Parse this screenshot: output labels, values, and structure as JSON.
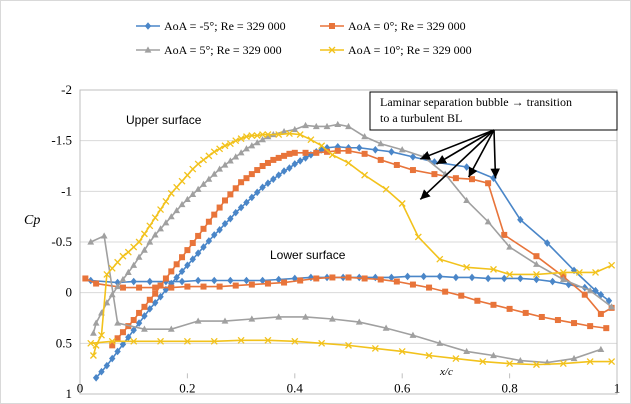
{
  "chart_data": {
    "type": "line",
    "xlabel": "x/c",
    "ylabel": "Cp",
    "xlim": [
      0,
      1
    ],
    "ylim": [
      -2,
      1
    ],
    "y_reversed": true,
    "x_ticks": [
      "0",
      "0.2",
      "0.4",
      "0.6",
      "0.8",
      "1"
    ],
    "y_ticks": [
      "-2",
      "-1.5",
      "-1",
      "-0.5",
      "0",
      "0.5",
      "1"
    ],
    "grid": "horizontal",
    "legend_position": "top",
    "series": [
      {
        "name": "AoA = -5°; Re = 329 000",
        "color": "#4a86c8",
        "marker": "diamond",
        "upper": {
          "x": [
            0.03,
            0.04,
            0.05,
            0.06,
            0.07,
            0.08,
            0.09,
            0.1,
            0.11,
            0.12,
            0.13,
            0.14,
            0.15,
            0.16,
            0.17,
            0.18,
            0.19,
            0.2,
            0.21,
            0.22,
            0.23,
            0.24,
            0.25,
            0.26,
            0.27,
            0.28,
            0.29,
            0.3,
            0.31,
            0.32,
            0.33,
            0.34,
            0.35,
            0.36,
            0.37,
            0.38,
            0.39,
            0.4,
            0.41,
            0.42,
            0.43,
            0.44,
            0.45,
            0.46,
            0.48,
            0.5,
            0.52,
            0.55,
            0.58,
            0.62,
            0.66,
            0.72,
            0.77,
            0.82,
            0.87,
            0.92,
            0.96,
            0.985
          ],
          "y": [
            0.84,
            0.78,
            0.72,
            0.65,
            0.58,
            0.51,
            0.44,
            0.37,
            0.3,
            0.23,
            0.16,
            0.1,
            0.04,
            -0.03,
            -0.09,
            -0.15,
            -0.21,
            -0.27,
            -0.33,
            -0.39,
            -0.45,
            -0.51,
            -0.57,
            -0.62,
            -0.68,
            -0.73,
            -0.79,
            -0.84,
            -0.89,
            -0.94,
            -0.99,
            -1.04,
            -1.08,
            -1.12,
            -1.16,
            -1.2,
            -1.23,
            -1.27,
            -1.3,
            -1.33,
            -1.36,
            -1.39,
            -1.41,
            -1.43,
            -1.44,
            -1.43,
            -1.43,
            -1.41,
            -1.39,
            -1.34,
            -1.29,
            -1.24,
            -1.13,
            -0.72,
            -0.49,
            -0.22,
            -0.02,
            0.08
          ]
        },
        "lower": {
          "x": [
            0.02,
            0.07,
            0.1,
            0.13,
            0.16,
            0.19,
            0.22,
            0.25,
            0.28,
            0.31,
            0.34,
            0.37,
            0.4,
            0.43,
            0.46,
            0.49,
            0.52,
            0.55,
            0.58,
            0.61,
            0.64,
            0.67,
            0.7,
            0.73,
            0.76,
            0.79,
            0.82,
            0.85,
            0.88,
            0.91,
            0.94,
            0.97
          ],
          "y": [
            -0.12,
            -0.1,
            -0.11,
            -0.11,
            -0.11,
            -0.11,
            -0.12,
            -0.12,
            -0.12,
            -0.12,
            -0.12,
            -0.13,
            -0.14,
            -0.15,
            -0.15,
            -0.15,
            -0.15,
            -0.15,
            -0.15,
            -0.16,
            -0.16,
            -0.16,
            -0.15,
            -0.15,
            -0.14,
            -0.14,
            -0.14,
            -0.13,
            -0.11,
            -0.08,
            -0.05,
            0.02
          ]
        }
      },
      {
        "name": "AoA = 0°; Re = 329 000",
        "color": "#e8743a",
        "marker": "square",
        "upper": {
          "x": [
            0.06,
            0.07,
            0.08,
            0.09,
            0.1,
            0.11,
            0.12,
            0.13,
            0.14,
            0.15,
            0.16,
            0.17,
            0.18,
            0.19,
            0.2,
            0.21,
            0.22,
            0.23,
            0.24,
            0.25,
            0.26,
            0.27,
            0.28,
            0.29,
            0.3,
            0.31,
            0.32,
            0.33,
            0.34,
            0.35,
            0.36,
            0.37,
            0.38,
            0.39,
            0.4,
            0.42,
            0.44,
            0.46,
            0.48,
            0.5,
            0.53,
            0.56,
            0.59,
            0.62,
            0.66,
            0.7,
            0.73,
            0.76,
            0.79,
            0.85,
            0.9,
            0.94,
            0.97,
            0.99
          ],
          "y": [
            0.52,
            0.45,
            0.39,
            0.33,
            0.27,
            0.2,
            0.14,
            0.07,
            0.01,
            -0.07,
            -0.14,
            -0.21,
            -0.28,
            -0.35,
            -0.42,
            -0.49,
            -0.56,
            -0.63,
            -0.7,
            -0.77,
            -0.84,
            -0.91,
            -0.97,
            -1.03,
            -1.09,
            -1.13,
            -1.17,
            -1.21,
            -1.25,
            -1.28,
            -1.31,
            -1.33,
            -1.35,
            -1.37,
            -1.38,
            -1.38,
            -1.38,
            -1.39,
            -1.4,
            -1.4,
            -1.37,
            -1.31,
            -1.26,
            -1.21,
            -1.17,
            -1.13,
            -1.12,
            -1.08,
            -0.57,
            -0.36,
            -0.16,
            0.02,
            0.21,
            0.15
          ]
        },
        "lower": {
          "x": [
            0.01,
            0.03,
            0.08,
            0.11,
            0.14,
            0.17,
            0.2,
            0.23,
            0.26,
            0.29,
            0.32,
            0.35,
            0.38,
            0.41,
            0.44,
            0.47,
            0.5,
            0.53,
            0.56,
            0.59,
            0.62,
            0.65,
            0.68,
            0.71,
            0.74,
            0.77,
            0.8,
            0.83,
            0.86,
            0.89,
            0.92,
            0.95,
            0.98
          ],
          "y": [
            -0.14,
            -0.09,
            -0.05,
            -0.05,
            -0.05,
            -0.05,
            -0.06,
            -0.06,
            -0.06,
            -0.07,
            -0.08,
            -0.09,
            -0.1,
            -0.12,
            -0.14,
            -0.15,
            -0.15,
            -0.14,
            -0.13,
            -0.11,
            -0.08,
            -0.05,
            -0.01,
            0.03,
            0.08,
            0.12,
            0.16,
            0.2,
            0.24,
            0.27,
            0.3,
            0.33,
            0.35
          ]
        }
      },
      {
        "name": "AoA = 5°; Re = 329 000",
        "color": "#a0a0a0",
        "marker": "triangle",
        "upper": {
          "x": [
            0.025,
            0.03,
            0.04,
            0.05,
            0.06,
            0.07,
            0.08,
            0.09,
            0.1,
            0.11,
            0.12,
            0.13,
            0.14,
            0.15,
            0.16,
            0.17,
            0.18,
            0.19,
            0.2,
            0.21,
            0.22,
            0.23,
            0.24,
            0.25,
            0.26,
            0.27,
            0.28,
            0.29,
            0.3,
            0.31,
            0.32,
            0.33,
            0.34,
            0.35,
            0.36,
            0.38,
            0.4,
            0.42,
            0.44,
            0.46,
            0.48,
            0.5,
            0.53,
            0.56,
            0.6,
            0.64,
            0.68,
            0.72,
            0.76,
            0.8,
            0.85,
            0.9,
            0.95,
            0.99
          ],
          "y": [
            0.4,
            0.3,
            0.2,
            0.1,
            0.02,
            -0.06,
            -0.13,
            -0.2,
            -0.27,
            -0.35,
            -0.42,
            -0.5,
            -0.57,
            -0.63,
            -0.69,
            -0.75,
            -0.81,
            -0.87,
            -0.92,
            -0.97,
            -1.02,
            -1.07,
            -1.12,
            -1.17,
            -1.22,
            -1.26,
            -1.3,
            -1.34,
            -1.38,
            -1.42,
            -1.45,
            -1.48,
            -1.51,
            -1.54,
            -1.56,
            -1.59,
            -1.61,
            -1.65,
            -1.64,
            -1.64,
            -1.66,
            -1.64,
            -1.54,
            -1.47,
            -1.41,
            -1.34,
            -1.17,
            -0.91,
            -0.7,
            -0.45,
            -0.28,
            -0.13,
            -0.02,
            0.14
          ]
        },
        "lower": {
          "x": [
            0.02,
            0.045,
            0.07,
            0.12,
            0.17,
            0.22,
            0.27,
            0.32,
            0.37,
            0.42,
            0.47,
            0.52,
            0.57,
            0.62,
            0.67,
            0.72,
            0.77,
            0.82,
            0.87,
            0.92,
            0.97
          ],
          "y": [
            -0.5,
            -0.56,
            0.3,
            0.36,
            0.36,
            0.28,
            0.28,
            0.26,
            0.24,
            0.24,
            0.26,
            0.29,
            0.35,
            0.42,
            0.5,
            0.58,
            0.62,
            0.67,
            0.69,
            0.65,
            0.56
          ]
        }
      },
      {
        "name": "AoA = 10°; Re = 329 000",
        "color": "#f2c21c",
        "marker": "x",
        "upper": {
          "x": [
            0.025,
            0.03,
            0.04,
            0.05,
            0.06,
            0.07,
            0.08,
            0.09,
            0.1,
            0.11,
            0.12,
            0.13,
            0.14,
            0.15,
            0.16,
            0.17,
            0.18,
            0.19,
            0.2,
            0.21,
            0.22,
            0.23,
            0.24,
            0.25,
            0.26,
            0.27,
            0.28,
            0.29,
            0.3,
            0.31,
            0.32,
            0.33,
            0.34,
            0.35,
            0.37,
            0.39,
            0.41,
            0.43,
            0.45,
            0.47,
            0.5,
            0.53,
            0.57,
            0.6,
            0.63,
            0.67,
            0.72,
            0.77,
            0.8,
            0.85,
            0.9,
            0.93,
            0.96,
            0.99
          ],
          "y": [
            0.62,
            0.52,
            0.42,
            -0.18,
            -0.24,
            -0.3,
            -0.36,
            -0.4,
            -0.45,
            -0.5,
            -0.58,
            -0.66,
            -0.74,
            -0.82,
            -0.9,
            -0.98,
            -1.04,
            -1.1,
            -1.16,
            -1.22,
            -1.27,
            -1.31,
            -1.35,
            -1.39,
            -1.42,
            -1.45,
            -1.47,
            -1.5,
            -1.52,
            -1.54,
            -1.55,
            -1.55,
            -1.56,
            -1.56,
            -1.56,
            -1.57,
            -1.56,
            -1.51,
            -1.45,
            -1.36,
            -1.28,
            -1.16,
            -1.02,
            -0.88,
            -0.55,
            -0.33,
            -0.25,
            -0.23,
            -0.18,
            -0.18,
            -0.2,
            -0.2,
            -0.2,
            -0.27
          ]
        },
        "lower": {
          "x": [
            0.02,
            0.06,
            0.1,
            0.15,
            0.2,
            0.25,
            0.3,
            0.35,
            0.4,
            0.45,
            0.5,
            0.55,
            0.6,
            0.65,
            0.7,
            0.75,
            0.8,
            0.85,
            0.9,
            0.95,
            0.99
          ],
          "y": [
            0.5,
            0.48,
            0.48,
            0.48,
            0.48,
            0.48,
            0.47,
            0.47,
            0.48,
            0.5,
            0.52,
            0.55,
            0.58,
            0.62,
            0.65,
            0.68,
            0.7,
            0.71,
            0.7,
            0.68,
            0.68
          ]
        }
      }
    ],
    "annotations": {
      "callout_line1": "Laminar separation bubble  → transition",
      "callout_line2": "to a turbulent BL",
      "upper_surface_label": "Upper surface",
      "lower_surface_label": "Lower surface"
    },
    "arrow_targets": [
      {
        "x": 0.63,
        "y": -0.9
      },
      {
        "x": 0.72,
        "y": -1.12
      },
      {
        "x": 0.77,
        "y": -1.11
      },
      {
        "x": 0.66,
        "y": -1.25
      },
      {
        "x": 0.63,
        "y": -1.3
      }
    ]
  }
}
